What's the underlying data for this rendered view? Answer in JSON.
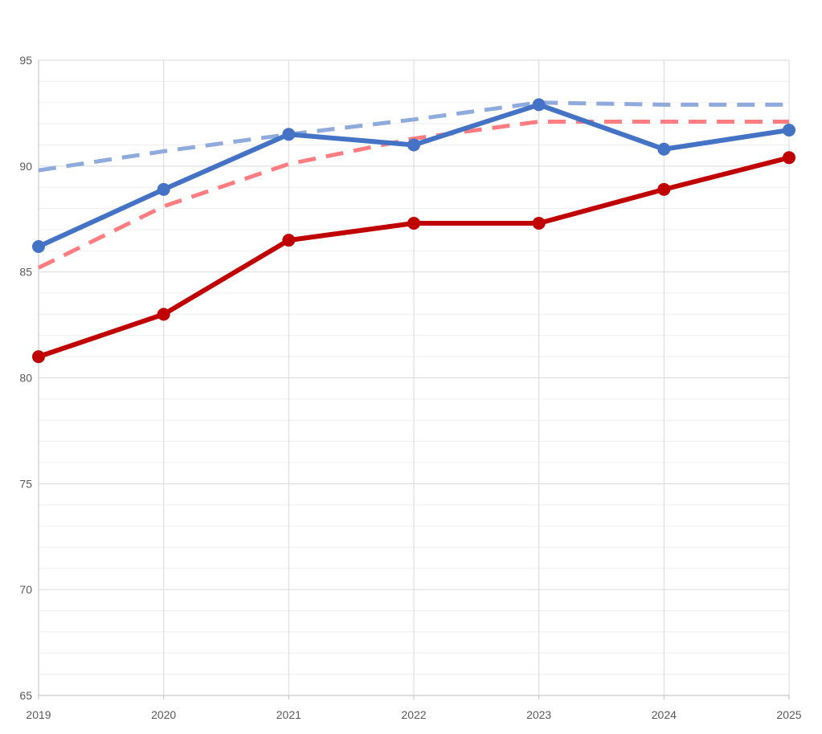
{
  "chart_data": {
    "type": "line",
    "x": [
      "2019",
      "2020",
      "2021",
      "2022",
      "2023",
      "2024",
      "2025"
    ],
    "ylim": [
      65,
      95
    ],
    "y_ticks": [
      65,
      70,
      75,
      80,
      85,
      90,
      95
    ],
    "y_minor_step": 1,
    "grid": true,
    "legend": "none",
    "series": [
      {
        "values": [
          89.8,
          90.7,
          91.5,
          92.2,
          93.0,
          92.9,
          92.9
        ],
        "color": "#8faadc",
        "style": "dashed",
        "markers": false
      },
      {
        "values": [
          85.2,
          88.1,
          90.1,
          91.3,
          92.1,
          92.1,
          92.1
        ],
        "color": "#ff7c80",
        "style": "dashed",
        "markers": false
      },
      {
        "values": [
          86.2,
          88.9,
          91.5,
          91.0,
          92.9,
          90.8,
          91.7
        ],
        "color": "#4472c4",
        "style": "solid",
        "markers": true
      },
      {
        "values": [
          81.0,
          83.0,
          86.5,
          87.3,
          87.3,
          88.9,
          90.4
        ],
        "color": "#c00000",
        "style": "solid",
        "markers": true
      }
    ]
  }
}
